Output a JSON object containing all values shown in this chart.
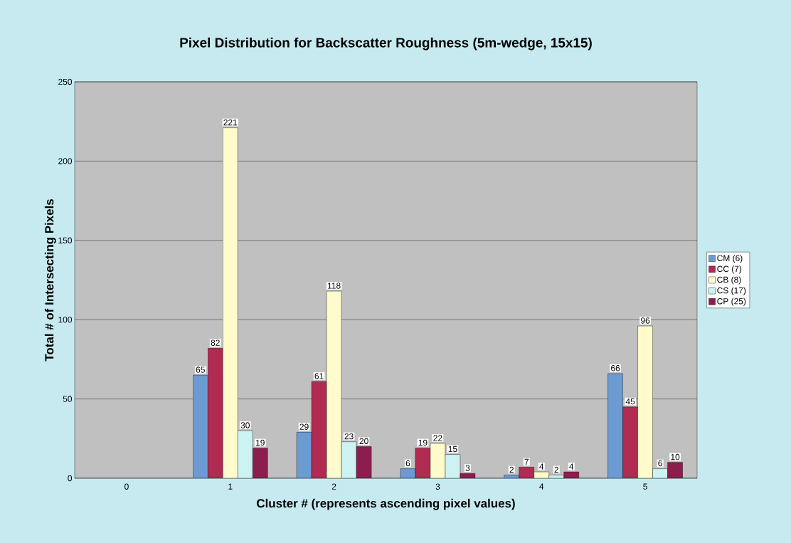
{
  "chart_data": {
    "type": "bar",
    "title": "Pixel Distribution for Backscatter Roughness (5m-wedge, 15x15)",
    "xlabel": "Cluster # (represents ascending pixel values)",
    "ylabel": "Total # of Intersecting Pixels",
    "categories": [
      "0",
      "1",
      "2",
      "3",
      "4",
      "5"
    ],
    "series": [
      {
        "name": "CM (6)",
        "color": "#6b9bd2",
        "values": [
          null,
          65,
          29,
          6,
          2,
          66
        ]
      },
      {
        "name": "CC (7)",
        "color": "#b02a52",
        "values": [
          null,
          82,
          61,
          19,
          7,
          45
        ]
      },
      {
        "name": "CB (8)",
        "color": "#fffbcc",
        "values": [
          null,
          221,
          118,
          22,
          4,
          96
        ]
      },
      {
        "name": "CS (17)",
        "color": "#cdf2f2",
        "values": [
          null,
          30,
          23,
          15,
          2,
          6
        ]
      },
      {
        "name": "CP (25)",
        "color": "#8c1e4e",
        "values": [
          null,
          19,
          20,
          3,
          4,
          10
        ]
      }
    ],
    "ylim": [
      0,
      250
    ],
    "yticks": [
      0,
      50,
      100,
      150,
      200,
      250
    ],
    "grid": "y",
    "legend": "right",
    "data_labels": true
  }
}
